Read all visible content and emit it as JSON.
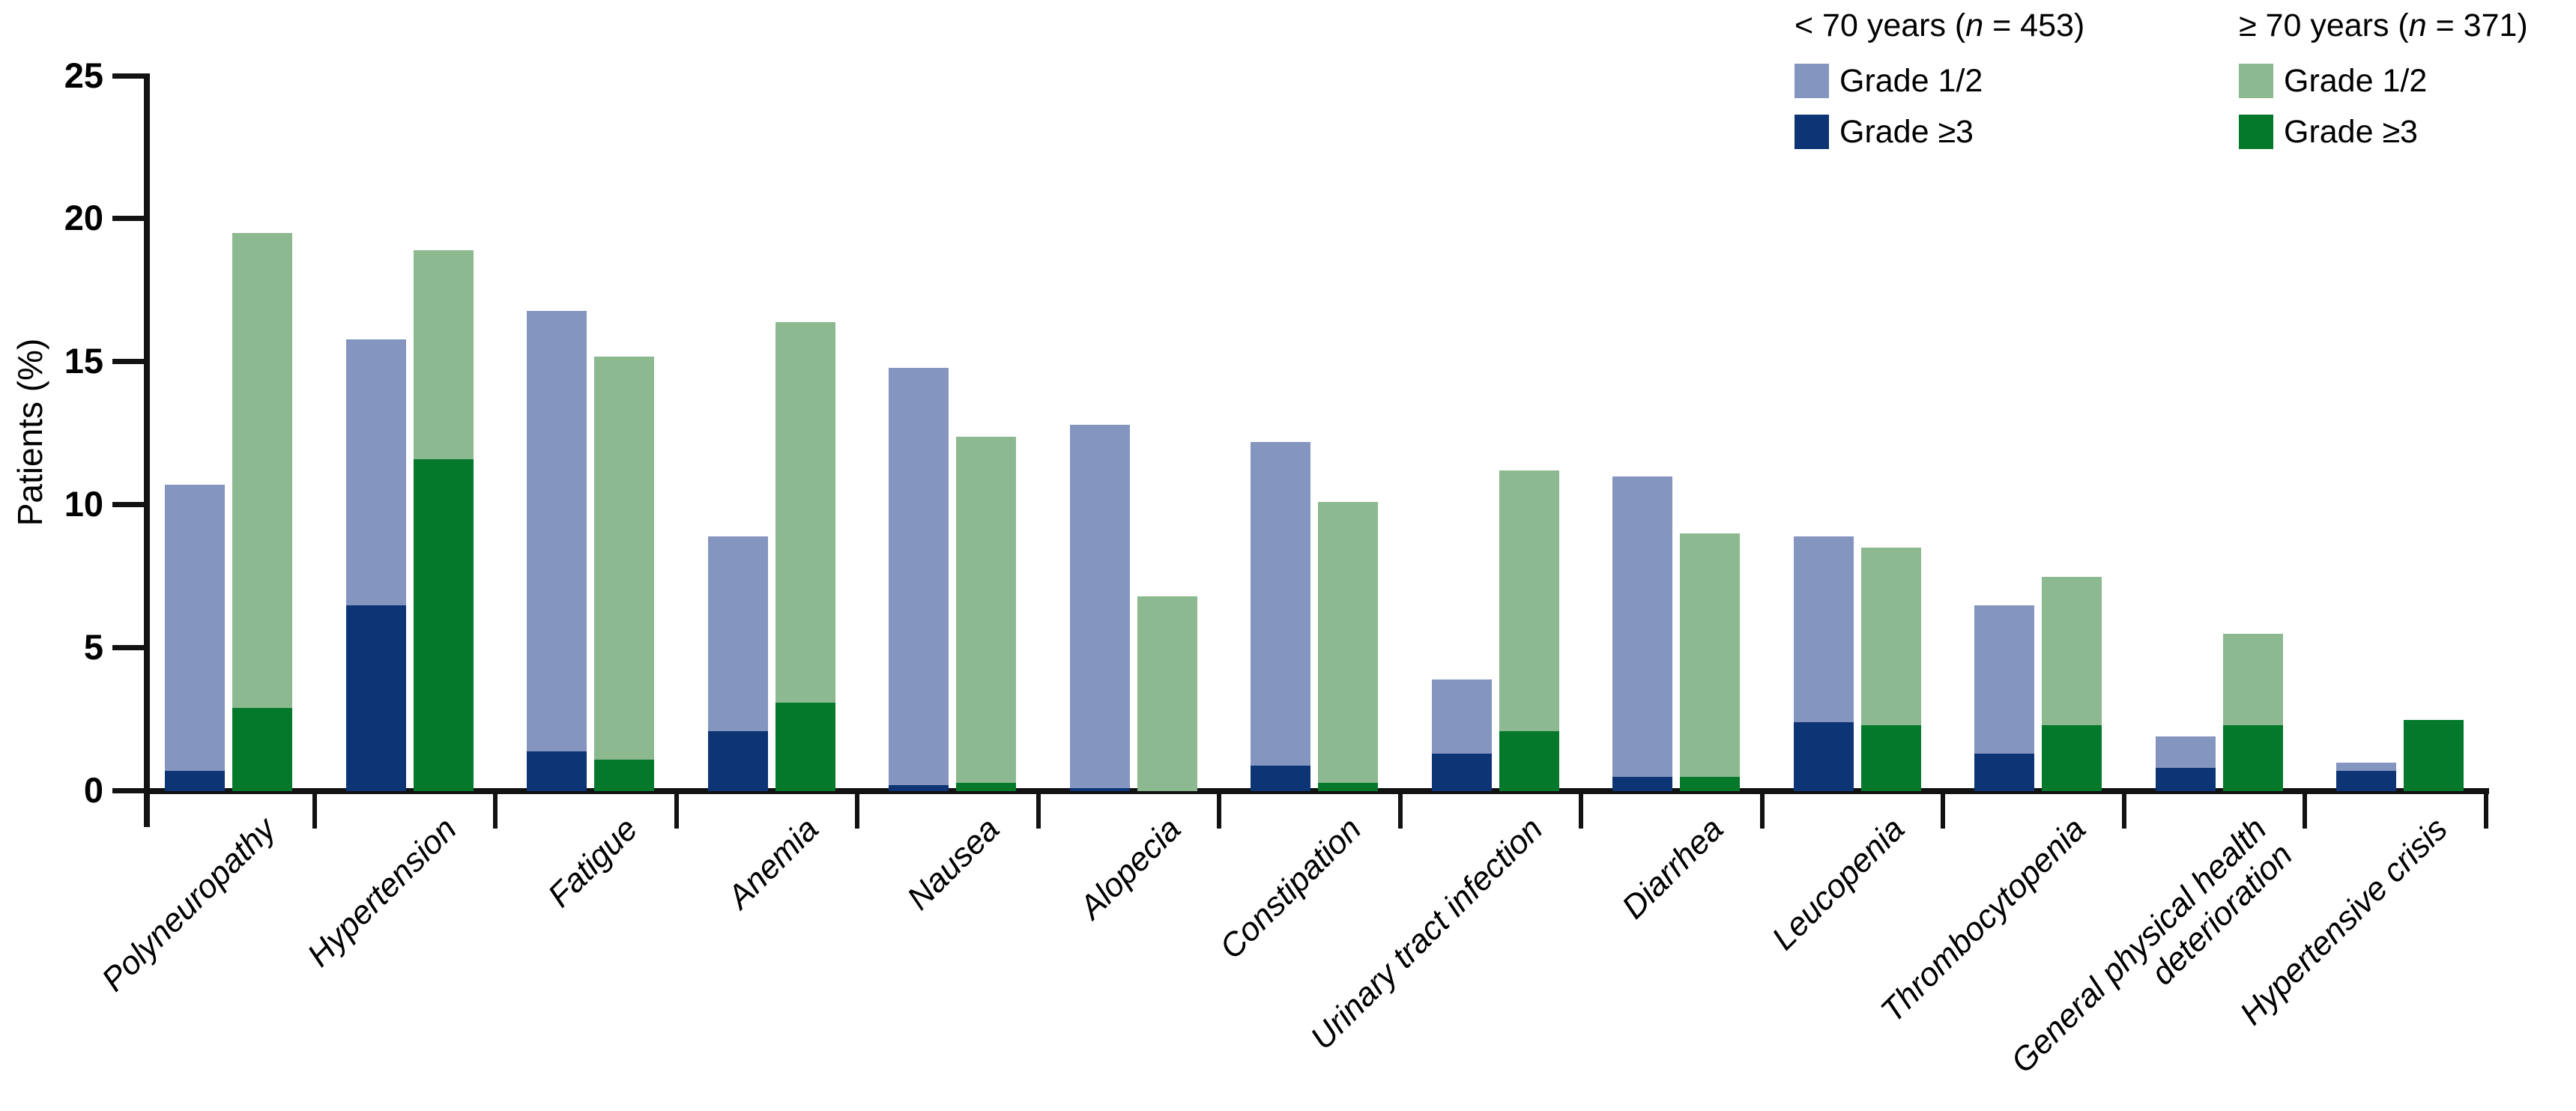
{
  "legend": {
    "columns": [
      {
        "title_pre": "< 70 years (",
        "title_n": "n",
        "title_post": " = 453)",
        "items": [
          {
            "label": "Grade 1/2",
            "color_key": "lt70_light"
          },
          {
            "label": "Grade ≥3",
            "color_key": "lt70_dark"
          }
        ]
      },
      {
        "title_pre": "≥ 70 years (",
        "title_n": "n",
        "title_post": " = 371)",
        "items": [
          {
            "label": "Grade 1/2",
            "color_key": "ge70_light"
          },
          {
            "label": "Grade ≥3",
            "color_key": "ge70_dark"
          }
        ]
      }
    ]
  },
  "colors": {
    "lt70_light": "#8495bf",
    "lt70_dark": "#0d3475",
    "ge70_light": "#8cb98f",
    "ge70_dark": "#04792b",
    "axis": "#121212",
    "text": "#000000"
  },
  "chart_data": {
    "type": "bar",
    "subtype": "grouped-stacked",
    "title": "",
    "xlabel": "",
    "ylabel": "Patients (%)",
    "ylim": [
      0,
      25
    ],
    "yticks": [
      0,
      5,
      10,
      15,
      20,
      25
    ],
    "grid": false,
    "legend_position": "top-right",
    "categories": [
      "Polyneuropathy",
      "Hypertension",
      "Fatigue",
      "Anemia",
      "Nausea",
      "Alopecia",
      "Constipation",
      "Urinary tract infection",
      "Diarrhea",
      "Leucopenia",
      "Thrombocytopenia",
      "General physical health deterioration",
      "Hypertensive crisis"
    ],
    "category_label_lines": [
      [
        "Polyneuropathy"
      ],
      [
        "Hypertension"
      ],
      [
        "Fatigue"
      ],
      [
        "Anemia"
      ],
      [
        "Nausea"
      ],
      [
        "Alopecia"
      ],
      [
        "Constipation"
      ],
      [
        "Urinary tract infection"
      ],
      [
        "Diarrhea"
      ],
      [
        "Leucopenia"
      ],
      [
        "Thrombocytopenia"
      ],
      [
        "General physical health",
        "deterioration"
      ],
      [
        "Hypertensive crisis"
      ]
    ],
    "groups": [
      {
        "key": "lt70",
        "name": "< 70 years (n = 453)",
        "stacks": [
          "Grade 1/2",
          "Grade ≥3"
        ]
      },
      {
        "key": "ge70",
        "name": "≥ 70 years (n = 371)",
        "stacks": [
          "Grade 1/2",
          "Grade ≥3"
        ]
      }
    ],
    "lt70": {
      "total": [
        10.7,
        15.8,
        16.8,
        8.9,
        14.8,
        12.8,
        12.2,
        3.9,
        11.0,
        8.9,
        6.5,
        1.9,
        1.0
      ],
      "grade3": [
        0.7,
        6.5,
        1.4,
        2.1,
        0.2,
        0.1,
        0.9,
        1.3,
        0.5,
        2.4,
        1.3,
        0.8,
        0.7
      ]
    },
    "ge70": {
      "total": [
        19.5,
        18.9,
        15.2,
        16.4,
        12.4,
        6.8,
        10.1,
        11.2,
        9.0,
        8.5,
        7.5,
        5.5,
        2.5
      ],
      "grade3": [
        2.9,
        11.6,
        1.1,
        3.1,
        0.3,
        0.0,
        0.3,
        2.1,
        0.5,
        2.3,
        2.3,
        2.3,
        2.5
      ]
    },
    "series": [
      {
        "name": "< 70 years Grade 1/2 (segment)",
        "values": [
          10.0,
          9.3,
          15.4,
          6.8,
          14.6,
          12.7,
          11.3,
          2.6,
          10.5,
          6.5,
          5.2,
          1.1,
          0.3
        ]
      },
      {
        "name": "< 70 years Grade ≥3",
        "values": [
          0.7,
          6.5,
          1.4,
          2.1,
          0.2,
          0.1,
          0.9,
          1.3,
          0.5,
          2.4,
          1.3,
          0.8,
          0.7
        ]
      },
      {
        "name": "≥ 70 years Grade 1/2 (segment)",
        "values": [
          16.6,
          7.3,
          14.1,
          13.3,
          12.1,
          6.8,
          9.8,
          9.1,
          8.5,
          6.2,
          5.2,
          3.2,
          0.0
        ]
      },
      {
        "name": "≥ 70 years Grade ≥3",
        "values": [
          2.9,
          11.6,
          1.1,
          3.1,
          0.3,
          0.0,
          0.3,
          2.1,
          0.5,
          2.3,
          2.3,
          2.3,
          2.5
        ]
      }
    ]
  }
}
